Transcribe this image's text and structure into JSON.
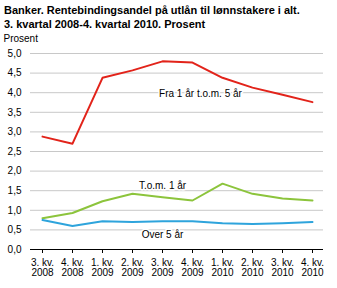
{
  "chart_data": {
    "type": "line",
    "title": "Banker. Rentebindingsandel på utlån til lønnstakere i alt.\n3. kvartal 2008-4. kvartal 2010. Prosent",
    "y_label": "Prosent",
    "categories": [
      "3. kv.\n2008",
      "4. kv.\n2008",
      "1. kv.\n2009",
      "2. kv.\n2009",
      "3. kv.\n2009",
      "4. kv.\n2009",
      "1. kv.\n2010",
      "2. kv.\n2010",
      "3. kv.\n2010",
      "4. kv.\n2010"
    ],
    "series": [
      {
        "name": "Fra 1 år t.o.m. 5 år",
        "color": "#e2231a",
        "values": [
          2.88,
          2.7,
          4.38,
          4.57,
          4.8,
          4.77,
          4.38,
          4.13,
          3.95,
          3.76
        ]
      },
      {
        "name": "T.o.m. 1 år",
        "color": "#8cc43c",
        "values": [
          0.8,
          0.93,
          1.23,
          1.42,
          1.33,
          1.25,
          1.68,
          1.42,
          1.3,
          1.25
        ]
      },
      {
        "name": "Over 5 år",
        "color": "#2ea4dc",
        "values": [
          0.75,
          0.6,
          0.72,
          0.7,
          0.72,
          0.72,
          0.67,
          0.65,
          0.67,
          0.7
        ]
      }
    ],
    "ylim": [
      0,
      5
    ],
    "yticks": [
      {
        "value": 0,
        "label": "0,0"
      },
      {
        "value": 0.5,
        "label": "0,5"
      },
      {
        "value": 1,
        "label": "1,0"
      },
      {
        "value": 1.5,
        "label": "1,5"
      },
      {
        "value": 2,
        "label": "2,0"
      },
      {
        "value": 2.5,
        "label": "2,5"
      },
      {
        "value": 3,
        "label": "3,0"
      },
      {
        "value": 3.5,
        "label": "3,5"
      },
      {
        "value": 4,
        "label": "4,0"
      },
      {
        "value": 4.5,
        "label": "4,5"
      },
      {
        "value": 5,
        "label": "5,0"
      }
    ],
    "grid": true
  }
}
